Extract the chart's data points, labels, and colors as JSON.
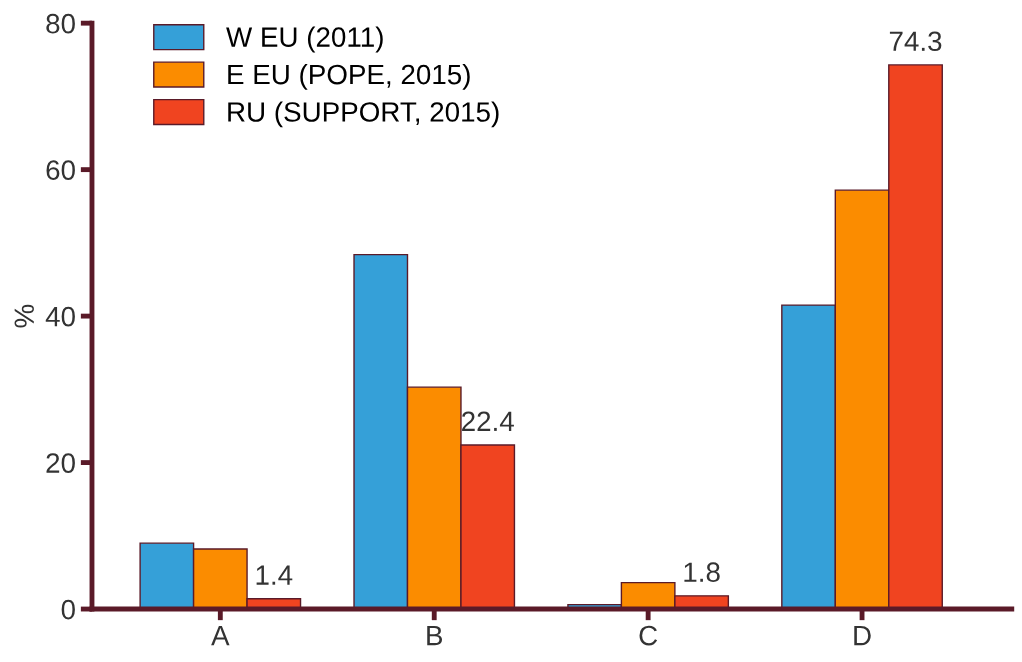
{
  "chart_data": {
    "type": "bar",
    "ylabel": "%",
    "categories": [
      "A",
      "B",
      "C",
      "D"
    ],
    "series": [
      {
        "name": "W EU (2011)",
        "color": "#35a0d8",
        "values": [
          9.0,
          48.4,
          0.6,
          41.5
        ]
      },
      {
        "name": "E EU (POPE, 2015)",
        "color": "#fb8c00",
        "values": [
          8.2,
          30.3,
          3.6,
          57.2
        ]
      },
      {
        "name": "RU (SUPPORT, 2015)",
        "color": "#f04420",
        "values": [
          1.4,
          22.4,
          1.8,
          74.3
        ],
        "value_labels": [
          "1.4",
          "22.4",
          "1.8",
          "74.3"
        ]
      }
    ],
    "ylim": [
      0,
      80
    ],
    "yticks": [
      0,
      20,
      40,
      60,
      80
    ],
    "grid": false,
    "legend": "top left"
  }
}
